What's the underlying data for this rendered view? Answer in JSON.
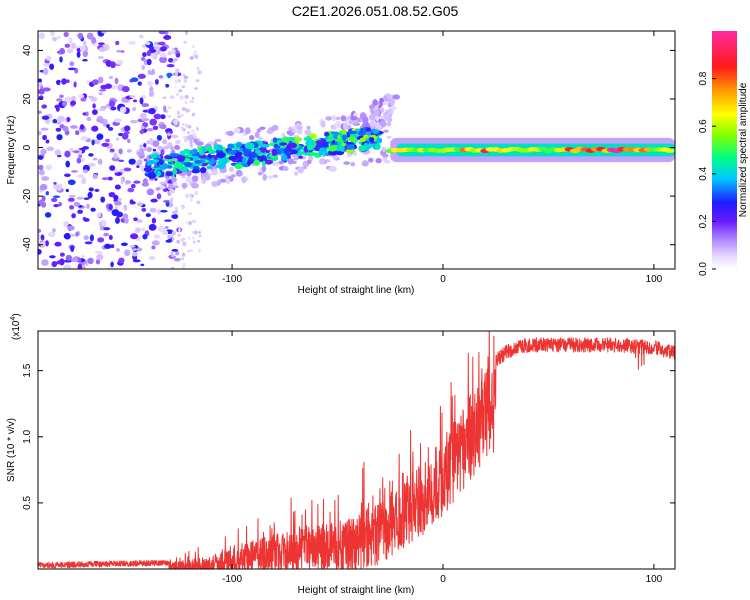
{
  "figure": {
    "title": "C2E1.2026.051.08.52.G05"
  },
  "chart_data": [
    {
      "type": "heatmap",
      "xlabel": "Height of straight line (km)",
      "ylabel": "Frequency (Hz)",
      "xlim": [
        -192,
        110
      ],
      "ylim": [
        -50,
        48
      ],
      "xticks": [
        -100,
        0,
        100
      ],
      "yticks": [
        -40,
        -20,
        0,
        20,
        40
      ],
      "colorbar": {
        "label": "Normalized spectral amplitude",
        "range": [
          0,
          1
        ],
        "ticks": [
          0.0,
          0.2,
          0.4,
          0.6,
          0.8
        ],
        "tick_labels": [
          "0.0",
          "0.2",
          "0.4",
          "0.6",
          "0.8"
        ],
        "colormap": "rainbow (white-lavender-purple-blue-cyan-green-yellow-orange-red-magenta)"
      },
      "regions": [
        {
          "name": "incoherent noise",
          "x_range": [
            -192,
            -125
          ],
          "y_range": [
            -50,
            48
          ],
          "amplitude": [
            0.05,
            0.3
          ]
        },
        {
          "name": "diffuse cluster",
          "x_range": [
            -140,
            -30
          ],
          "freq_center_start": -8,
          "freq_center_end": 4,
          "amplitude": [
            0.2,
            0.5
          ]
        },
        {
          "name": "upper branch",
          "x_range": [
            -50,
            -22
          ],
          "freq_center_start": 5,
          "freq_center_end": 17,
          "amplitude": [
            0.05,
            0.15
          ]
        },
        {
          "name": "narrowband carrier",
          "x_range": [
            -25,
            110
          ],
          "freq_center": -1,
          "amplitude": [
            0.5,
            0.9
          ]
        }
      ],
      "colorbar_numbers": [
        0.0,
        0.2,
        0.4,
        0.6,
        0.8
      ]
    },
    {
      "type": "line",
      "xlabel": "Height of straight line (km)",
      "ylabel": "SNR (10 * v/v)",
      "y_multiplier": "(x10",
      "y_multiplier_exp": "4",
      "y_multiplier_close": ")",
      "xlim": [
        -192,
        110
      ],
      "ylim": [
        0,
        1.8
      ],
      "xticks": [
        -100,
        0,
        100
      ],
      "yticks": [
        0.5,
        1.0,
        1.5
      ],
      "ytick_labels": [
        "0.5",
        "1.0",
        "1.5"
      ],
      "series_color": "#ee3333",
      "series_name": "SNR",
      "envelope": {
        "x": [
          -192,
          -160,
          -130,
          -120,
          -110,
          -100,
          -90,
          -80,
          -70,
          -60,
          -50,
          -40,
          -30,
          -20,
          -10,
          0,
          10,
          20,
          30,
          40,
          60,
          80,
          100,
          110
        ],
        "y": [
          0.03,
          0.04,
          0.05,
          0.07,
          0.1,
          0.16,
          0.22,
          0.26,
          0.3,
          0.33,
          0.37,
          0.42,
          0.52,
          0.66,
          0.82,
          1.0,
          1.25,
          1.5,
          1.65,
          1.7,
          1.7,
          1.7,
          1.68,
          1.64
        ]
      },
      "envelope_values": [
        0.03,
        0.04,
        0.05,
        0.07,
        0.1,
        0.16,
        0.22,
        0.26,
        0.3,
        0.33,
        0.37,
        0.42,
        0.52,
        0.66,
        0.82,
        1.0,
        1.25,
        1.5,
        1.65,
        1.7,
        1.7,
        1.7,
        1.68,
        1.64
      ]
    }
  ]
}
